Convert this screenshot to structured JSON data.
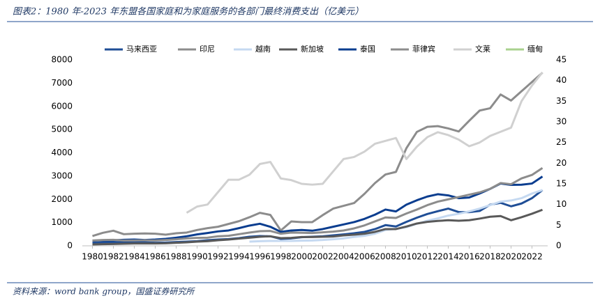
{
  "chart_data": {
    "type": "line",
    "title": "图表2：1980 年-2023 年东盟各国家庭和为家庭服务的各部门最终消费支出（亿美元）",
    "source": "资料来源：word bank group，国盛证券研究所",
    "x": [
      1980,
      1981,
      1982,
      1983,
      1984,
      1985,
      1986,
      1987,
      1988,
      1989,
      1990,
      1991,
      1992,
      1993,
      1994,
      1995,
      1996,
      1997,
      1998,
      1999,
      2000,
      2001,
      2002,
      2003,
      2004,
      2005,
      2006,
      2007,
      2008,
      2009,
      2010,
      2011,
      2012,
      2013,
      2014,
      2015,
      2016,
      2017,
      2018,
      2019,
      2020,
      2021,
      2022,
      2023
    ],
    "xlim": [
      1979.7,
      2023.5
    ],
    "xticks": [
      1980,
      1982,
      1984,
      1986,
      1988,
      1990,
      1992,
      1994,
      1996,
      1998,
      2000,
      2002,
      2004,
      2006,
      2008,
      2010,
      2012,
      2014,
      2016,
      2018,
      2020,
      2022
    ],
    "ylim": [
      0,
      8000
    ],
    "yticks": [
      0,
      1000,
      2000,
      3000,
      4000,
      5000,
      6000,
      7000,
      8000
    ],
    "y2lim": [
      0,
      45
    ],
    "y2ticks": [
      0,
      5,
      10,
      15,
      20,
      25,
      30,
      35,
      40,
      45
    ],
    "series": [
      {
        "name": "马来西亚",
        "color": "#1f4e96",
        "values": [
          130,
          150,
          150,
          160,
          170,
          150,
          130,
          140,
          160,
          180,
          200,
          240,
          270,
          290,
          330,
          390,
          420,
          410,
          300,
          320,
          370,
          390,
          410,
          450,
          490,
          540,
          600,
          720,
          890,
          830,
          1030,
          1210,
          1370,
          1490,
          1600,
          1450,
          1450,
          1500,
          1770,
          1850,
          1700,
          1820,
          2050,
          2400
        ]
      },
      {
        "name": "印尼",
        "color": "#8c8c8c",
        "values": [
          420,
          560,
          650,
          500,
          520,
          530,
          520,
          480,
          540,
          570,
          680,
          760,
          820,
          940,
          1060,
          1230,
          1420,
          1330,
          660,
          1050,
          1020,
          1020,
          1320,
          1600,
          1720,
          1840,
          2240,
          2700,
          3070,
          3180,
          4200,
          4900,
          5120,
          5150,
          5050,
          4920,
          5380,
          5820,
          5920,
          6510,
          6250,
          6650,
          7050,
          7450
        ]
      },
      {
        "name": "越南",
        "color": "#c5d9f1",
        "values": [
          null,
          null,
          null,
          null,
          null,
          null,
          null,
          null,
          null,
          null,
          null,
          null,
          null,
          null,
          null,
          180,
          200,
          210,
          210,
          210,
          220,
          230,
          250,
          280,
          320,
          380,
          430,
          520,
          680,
          730,
          800,
          950,
          1080,
          1180,
          1300,
          1380,
          1480,
          1600,
          1750,
          1900,
          1950,
          2050,
          2250,
          2400
        ]
      },
      {
        "name": "新加坡",
        "color": "#595959",
        "values": [
          60,
          70,
          80,
          90,
          100,
          100,
          100,
          110,
          130,
          150,
          180,
          200,
          240,
          270,
          310,
          350,
          390,
          410,
          330,
          340,
          380,
          380,
          390,
          400,
          450,
          480,
          520,
          600,
          720,
          720,
          830,
          960,
          1030,
          1070,
          1100,
          1080,
          1100,
          1170,
          1250,
          1280,
          1100,
          1230,
          1380,
          1550
        ]
      },
      {
        "name": "泰国",
        "color": "#0a3d8f",
        "values": [
          220,
          240,
          240,
          260,
          270,
          250,
          270,
          300,
          350,
          410,
          490,
          550,
          620,
          660,
          760,
          870,
          950,
          820,
          600,
          660,
          680,
          650,
          720,
          820,
          920,
          1020,
          1160,
          1340,
          1560,
          1480,
          1770,
          1960,
          2120,
          2220,
          2170,
          2050,
          2080,
          2250,
          2450,
          2680,
          2620,
          2630,
          2680,
          2980
        ]
      },
      {
        "name": "菲律宾",
        "color": "#8c8c8c",
        "values": [
          230,
          250,
          260,
          230,
          230,
          240,
          230,
          250,
          280,
          320,
          340,
          350,
          410,
          430,
          500,
          570,
          630,
          640,
          520,
          570,
          560,
          550,
          580,
          610,
          660,
          750,
          880,
          1050,
          1220,
          1200,
          1390,
          1560,
          1750,
          1900,
          2000,
          2100,
          2200,
          2300,
          2450,
          2700,
          2650,
          2900,
          3050,
          3350
        ]
      },
      {
        "name": "文莱",
        "color": "#d0d0d0",
        "axis": "y2",
        "values": [
          null,
          null,
          null,
          null,
          null,
          null,
          null,
          null,
          null,
          8,
          9.5,
          10,
          13,
          16,
          16,
          17.2,
          19.8,
          20.3,
          16.3,
          15.9,
          15,
          14.8,
          15,
          18,
          21,
          21.5,
          22.8,
          24.7,
          25.4,
          26.1,
          21,
          24,
          26.3,
          27.5,
          26.8,
          25.7,
          24.1,
          25,
          26.6,
          27.6,
          28.6,
          35,
          38.8,
          42
        ]
      },
      {
        "name": "缅甸",
        "color": "#a9d18e",
        "values": [
          null,
          null,
          null,
          null,
          null,
          null,
          null,
          null,
          null,
          null,
          null,
          null,
          null,
          null,
          null,
          null,
          null,
          null,
          null,
          null,
          null,
          null,
          null,
          null,
          null,
          null,
          null,
          null,
          null,
          null,
          null,
          null,
          null,
          null,
          null,
          null,
          null,
          null,
          null,
          null,
          null,
          null,
          null,
          null
        ]
      }
    ]
  }
}
